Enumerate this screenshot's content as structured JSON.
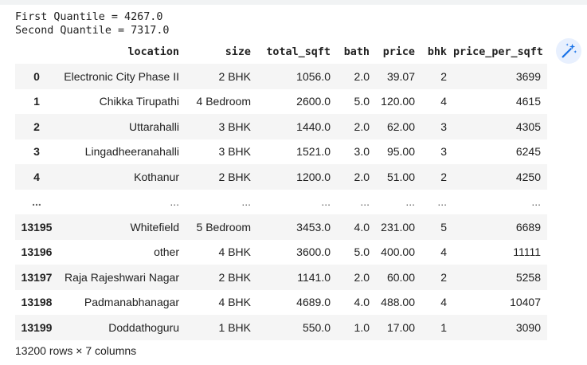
{
  "stdout": {
    "lines": [
      "First Quantile = 4267.0",
      "Second Quantile = 7317.0"
    ]
  },
  "table": {
    "columns": [
      "",
      "location",
      "size",
      "total_sqft",
      "bath",
      "price",
      "bhk",
      "price_per_sqft"
    ],
    "rows": [
      [
        "0",
        "Electronic City Phase II",
        "2 BHK",
        "1056.0",
        "2.0",
        "39.07",
        "2",
        "3699"
      ],
      [
        "1",
        "Chikka Tirupathi",
        "4 Bedroom",
        "2600.0",
        "5.0",
        "120.00",
        "4",
        "4615"
      ],
      [
        "2",
        "Uttarahalli",
        "3 BHK",
        "1440.0",
        "2.0",
        "62.00",
        "3",
        "4305"
      ],
      [
        "3",
        "Lingadheeranahalli",
        "3 BHK",
        "1521.0",
        "3.0",
        "95.00",
        "3",
        "6245"
      ],
      [
        "4",
        "Kothanur",
        "2 BHK",
        "1200.0",
        "2.0",
        "51.00",
        "2",
        "4250"
      ],
      [
        "...",
        "...",
        "...",
        "...",
        "...",
        "...",
        "...",
        "..."
      ],
      [
        "13195",
        "Whitefield",
        "5 Bedroom",
        "3453.0",
        "4.0",
        "231.00",
        "5",
        "6689"
      ],
      [
        "13196",
        "other",
        "4 BHK",
        "3600.0",
        "5.0",
        "400.00",
        "4",
        "11111"
      ],
      [
        "13197",
        "Raja Rajeshwari Nagar",
        "2 BHK",
        "1141.0",
        "2.0",
        "60.00",
        "2",
        "5258"
      ],
      [
        "13198",
        "Padmanabhanagar",
        "4 BHK",
        "4689.0",
        "4.0",
        "488.00",
        "4",
        "10407"
      ],
      [
        "13199",
        "Doddathoguru",
        "1 BHK",
        "550.0",
        "1.0",
        "17.00",
        "1",
        "3090"
      ]
    ]
  },
  "footer": {
    "shape_text": "13200 rows × 7 columns"
  },
  "toolbar": {
    "magic_icon": "magic-wand-icon",
    "accent_color": "#1a73e8"
  }
}
